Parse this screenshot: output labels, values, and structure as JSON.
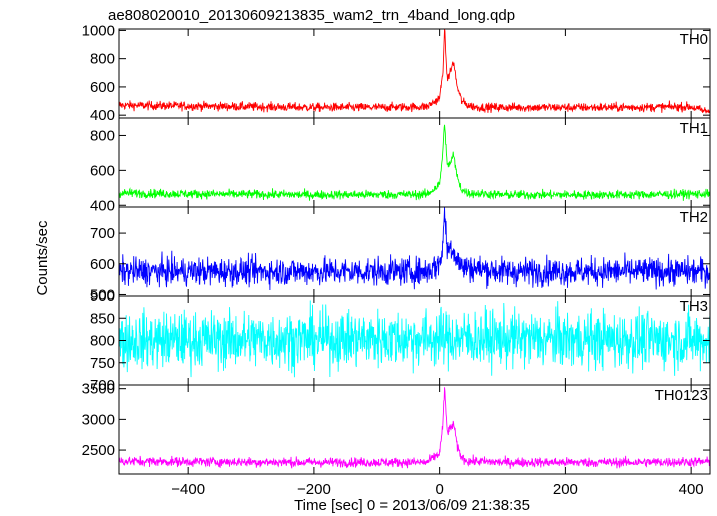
{
  "chart_data": {
    "type": "line",
    "title": "ae808020010_20130609213835_wam2_trn_4band_long.qdp",
    "xlabel": "Time [sec] 0 = 2013/06/09 21:38:35",
    "ylabel": "Counts/sec",
    "xlim": [
      -510,
      430
    ],
    "x_ticks": [
      -400,
      -200,
      0,
      200,
      400
    ],
    "x_tick_labels": [
      "−400",
      "−200",
      "0",
      "200",
      "400"
    ],
    "panels": [
      {
        "name": "TH0",
        "color": "#ff0000",
        "ylim": [
          380,
          1010
        ],
        "y_ticks": [
          400,
          600,
          800,
          1000
        ],
        "y_tick_labels": [
          "400",
          "600",
          "800",
          "1000"
        ],
        "baseline": 460,
        "noise": 22,
        "x": [
          -510,
          -400,
          -300,
          -200,
          -100,
          -20,
          0,
          5,
          8,
          12,
          18,
          22,
          28,
          35,
          45,
          60,
          100,
          200,
          300,
          400,
          420
        ],
        "values": [
          470,
          465,
          460,
          455,
          455,
          460,
          520,
          700,
          1000,
          650,
          720,
          780,
          600,
          500,
          470,
          455,
          455,
          455,
          455,
          460,
          430
        ]
      },
      {
        "name": "TH1",
        "color": "#00ff00",
        "ylim": [
          390,
          900
        ],
        "y_ticks": [
          400,
          600,
          800
        ],
        "y_tick_labels": [
          "400",
          "600",
          "800"
        ],
        "baseline": 465,
        "noise": 18,
        "x": [
          -510,
          -400,
          -200,
          -20,
          0,
          5,
          8,
          12,
          18,
          22,
          28,
          35,
          45,
          100,
          300,
          420
        ],
        "values": [
          470,
          465,
          460,
          462,
          520,
          700,
          880,
          620,
          650,
          690,
          560,
          490,
          470,
          460,
          460,
          465
        ]
      },
      {
        "name": "TH2",
        "color": "#0000ff",
        "ylim": [
          495,
          785
        ],
        "y_ticks": [
          500,
          600,
          700
        ],
        "y_tick_labels": [
          "500",
          "600",
          "700"
        ],
        "baseline": 575,
        "noise": 32,
        "x": [
          -510,
          -400,
          -200,
          -20,
          0,
          5,
          8,
          12,
          18,
          25,
          35,
          100,
          300,
          420
        ],
        "values": [
          575,
          575,
          575,
          575,
          600,
          660,
          775,
          640,
          660,
          630,
          590,
          575,
          575,
          575
        ]
      },
      {
        "name": "TH3",
        "color": "#00ffff",
        "ylim": [
          700,
          900
        ],
        "y_ticks": [
          700,
          750,
          800,
          850,
          900
        ],
        "y_tick_labels": [
          "700",
          "750",
          "800",
          "850",
          "900"
        ],
        "baseline": 800,
        "noise": 45,
        "x": [
          -510,
          0,
          420
        ],
        "values": [
          800,
          805,
          800
        ]
      },
      {
        "name": "TH0123",
        "color": "#ff00ff",
        "ylim": [
          2110,
          3560
        ],
        "y_ticks": [
          2500,
          3000,
          3500
        ],
        "y_tick_labels": [
          "2500",
          "3000",
          "3500"
        ],
        "baseline": 2300,
        "noise": 55,
        "x": [
          -510,
          -400,
          -200,
          -20,
          0,
          5,
          8,
          12,
          18,
          22,
          28,
          35,
          45,
          100,
          300,
          420
        ],
        "values": [
          2320,
          2310,
          2300,
          2300,
          2450,
          2900,
          3500,
          2800,
          2850,
          2950,
          2550,
          2380,
          2320,
          2300,
          2300,
          2310
        ]
      }
    ]
  }
}
